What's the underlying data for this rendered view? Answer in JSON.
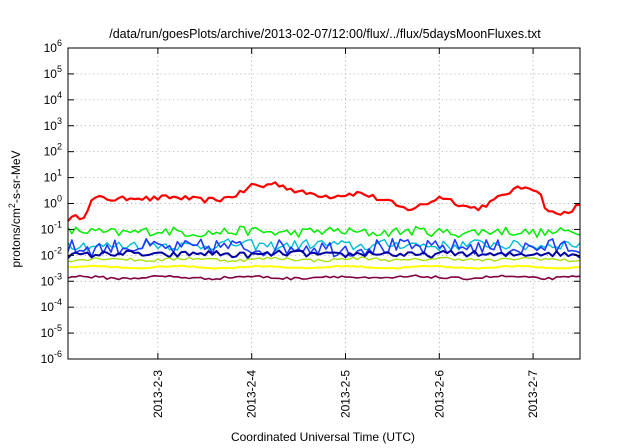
{
  "chart_data": {
    "type": "line",
    "title": "/data/run/goesPlots/archive/2013-02-07/12:00/flux/../flux/5daysMoonFluxes.txt",
    "xlabel": "Coordinated Universal Time (UTC)",
    "ylabel": "protons/cm2-s-sr-MeV",
    "ylabel_parts": {
      "base": "protons/cm",
      "sup": "2",
      "rest": "-s-sr-MeV"
    },
    "y_scale": "log",
    "ylim": [
      1e-06,
      1000000.0
    ],
    "y_ticks": [
      {
        "base": "10",
        "exp": "-6",
        "value": 1e-06
      },
      {
        "base": "10",
        "exp": "-5",
        "value": 1e-05
      },
      {
        "base": "10",
        "exp": "-4",
        "value": 0.0001
      },
      {
        "base": "10",
        "exp": "-3",
        "value": 0.001
      },
      {
        "base": "10",
        "exp": "-2",
        "value": 0.01
      },
      {
        "base": "10",
        "exp": "-1",
        "value": 0.1
      },
      {
        "base": "10",
        "exp": "0",
        "value": 1
      },
      {
        "base": "10",
        "exp": "1",
        "value": 10
      },
      {
        "base": "10",
        "exp": "2",
        "value": 100
      },
      {
        "base": "10",
        "exp": "3",
        "value": 1000
      },
      {
        "base": "10",
        "exp": "4",
        "value": 10000
      },
      {
        "base": "10",
        "exp": "5",
        "value": 100000
      },
      {
        "base": "10",
        "exp": "6",
        "value": 1000000
      }
    ],
    "xlim": [
      "2013-02-02T01:00",
      "2013-02-07T12:00"
    ],
    "x_ticks": [
      {
        "label": "2013-2-3",
        "value": "2013-02-03"
      },
      {
        "label": "2013-2-4",
        "value": "2013-02-04"
      },
      {
        "label": "2013-2-5",
        "value": "2013-02-05"
      },
      {
        "label": "2013-2-6",
        "value": "2013-02-06"
      },
      {
        "label": "2013-2-7",
        "value": "2013-02-07"
      }
    ],
    "grid": true,
    "legend": "none",
    "sample_step_hours": 1,
    "series": [
      {
        "color": "#ff0000",
        "base": 1.5,
        "noise": 0.1,
        "width": 2.2,
        "anchors": [
          [
            0,
            0.25
          ],
          [
            0.03,
            0.3
          ],
          [
            0.05,
            1.5
          ],
          [
            0.1,
            1.5
          ],
          [
            0.13,
            2.0
          ],
          [
            0.16,
            1.5
          ],
          [
            0.2,
            1.6
          ],
          [
            0.26,
            1.4
          ],
          [
            0.3,
            1.6
          ],
          [
            0.34,
            2.5
          ],
          [
            0.36,
            5
          ],
          [
            0.38,
            4
          ],
          [
            0.4,
            6
          ],
          [
            0.42,
            5
          ],
          [
            0.45,
            3
          ],
          [
            0.48,
            2.5
          ],
          [
            0.51,
            1.8
          ],
          [
            0.54,
            2.0
          ],
          [
            0.57,
            2.5
          ],
          [
            0.6,
            1.8
          ],
          [
            0.63,
            1.2
          ],
          [
            0.65,
            0.7
          ],
          [
            0.67,
            0.6
          ],
          [
            0.7,
            0.9
          ],
          [
            0.73,
            1.8
          ],
          [
            0.75,
            1.3
          ],
          [
            0.78,
            0.8
          ],
          [
            0.8,
            0.7
          ],
          [
            0.83,
            1.2
          ],
          [
            0.86,
            2.5
          ],
          [
            0.88,
            3.5
          ],
          [
            0.9,
            4.5
          ],
          [
            0.92,
            3.0
          ],
          [
            0.935,
            0.6
          ],
          [
            0.955,
            0.4
          ],
          [
            0.975,
            0.5
          ],
          [
            0.99,
            0.7
          ],
          [
            1,
            0.8
          ]
        ]
      },
      {
        "color": "#00ee00",
        "base": 0.08,
        "noise": 0.18,
        "width": 1.5
      },
      {
        "color": "#00bcd4",
        "base": 0.025,
        "noise": 0.2,
        "width": 1.4
      },
      {
        "color": "#1e3cff",
        "base": 0.02,
        "noise": 0.32,
        "width": 1.6
      },
      {
        "color": "#0000a0",
        "base": 0.011,
        "noise": 0.12,
        "width": 2
      },
      {
        "color": "#9fe000",
        "base": 0.007,
        "noise": 0.06,
        "width": 1.3
      },
      {
        "color": "#ffff00",
        "base": 0.0035,
        "noise": 0.02,
        "width": 2
      },
      {
        "color": "#800040",
        "base": 0.0014,
        "noise": 0.05,
        "width": 1.6
      }
    ]
  }
}
